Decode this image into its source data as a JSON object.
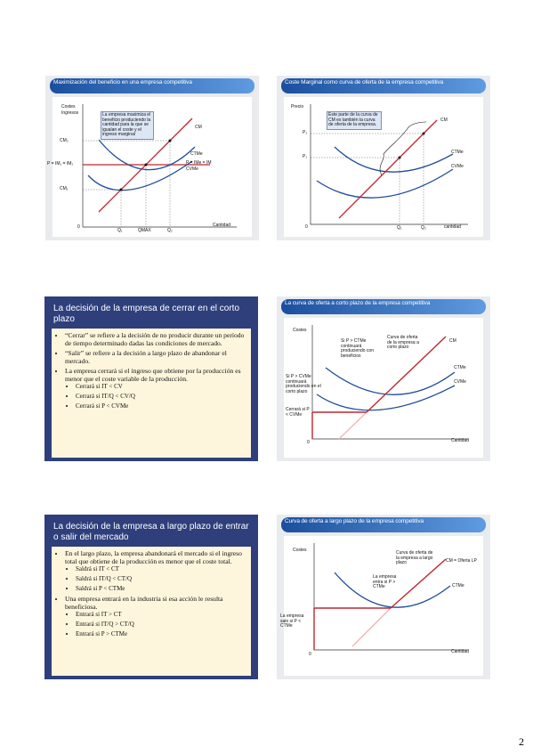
{
  "slides": [
    {
      "title": "Maximización del beneficio en una empresa competitiva",
      "labels": {
        "costes": "Costes",
        "ingresos": "Ingresos",
        "note": "La empresa maximiza el beneficio produciendo la cantidad para la que se igualan el coste y el ingreso marginal",
        "cm": "CM",
        "cm2": "CM₂",
        "p_left": "P = IM₁ = IM₂",
        "p_right": "P = IMe = IM",
        "ctme": "CTMe",
        "cvme": "CVMe",
        "cm1": "CM₁",
        "zero": "0",
        "q1": "Q₁",
        "qmax": "QMAX",
        "q2": "Q₂",
        "cantidad": "Cantidad"
      }
    },
    {
      "title": "Coste Marginal como curva de oferta de la empresa competitiva",
      "labels": {
        "precio": "Precio",
        "note": "Este parte de la curva de CM es también la curva de oferta de la empresa.",
        "cm": "CM",
        "p2": "P₂",
        "p1": "P₁",
        "ctme": "CTMe",
        "cvme": "CVMe",
        "zero": "0",
        "q1": "Q₁",
        "q2": "Q₂",
        "cantidad": "cantidad"
      }
    },
    {
      "title": "La decisión de la empresa de cerrar en el corto plazo",
      "bullets": [
        {
          "text": "“Cerrar” se refiere a la decisión de no producir durante un período de tiempo determinado dadas las condiciones de mercado.",
          "sub": []
        },
        {
          "text": "“Salir” se refiere a la decisión a largo plazo de abandonar el mercado.",
          "sub": []
        },
        {
          "text": "La empresa cerrará si el ingreso que obtiene por la producción es menor que el coste variable de la producción.",
          "sub": [
            "Cerrará si IT < CV",
            "Cerrará si IT/Q < CV/Q",
            "Cerrará si P < CVMe"
          ]
        }
      ]
    },
    {
      "title": "La curva de oferta a corto plazo de la empresa competitiva",
      "labels": {
        "costes": "Costes",
        "note1": "Si P > CTMe continuará produciendo con beneficios",
        "note2": "Curva de oferta de la empresa a corto plazo",
        "cm": "CM",
        "ctme": "CTMe",
        "cvme": "CVMe",
        "note3": "Si P > CVMe continuará produciendo en el corto plazo",
        "note4": "Cerrará si P < CVMe",
        "zero": "0",
        "cantidad": "Cantidad"
      }
    },
    {
      "title": "La decisión de la empresa a largo plazo de entrar o salir del mercado",
      "bullets": [
        {
          "text": "En el largo plazo, la empresa abandonará el mercado si el ingreso total que obtiene de la producción es menor que el coste total.",
          "sub": [
            "Saldrá si IT < CT",
            "Saldrá si IT/Q < CT/Q",
            "Saldrá si P < CTMe"
          ]
        },
        {
          "text": "Una empresa entrará en la industria si esa acción le resulta beneficiosa.",
          "sub": [
            "Entrará si IT > CT",
            "Entrará si IT/Q > CT/Q",
            "Entrará si P > CTMe"
          ]
        }
      ]
    },
    {
      "title": "Curva de oferta a largo plazo de la empresa competitiva",
      "labels": {
        "costes": "Costes",
        "note1": "Curva de oferta de la empresa a largo plazo",
        "cm": "CM = Oferta LP",
        "note2": "La empresa entra si P > CTMe",
        "ctme": "CTMe",
        "note3": "La empresa sale si P < CTMe",
        "zero": "0",
        "cantidad": "Cantidad"
      }
    }
  ],
  "page_number": "2"
}
